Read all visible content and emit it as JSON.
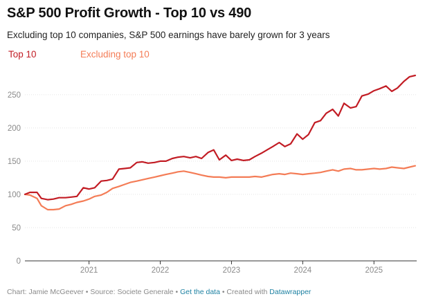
{
  "chart_data": {
    "type": "line",
    "title": "S&P 500 Profit Growth - Top 10 vs 490",
    "subtitle": "Excluding top 10 companies, S&P 500 earnings have barely grown for 3 years",
    "xlabel": "",
    "ylabel": "",
    "xlim": [
      2020.1,
      2025.6
    ],
    "ylim": [
      0,
      280
    ],
    "y_ticks": [
      0,
      50,
      100,
      150,
      200,
      250
    ],
    "x_ticks": [
      2021,
      2022,
      2023,
      2024,
      2025
    ],
    "x_tick_labels": [
      "2021",
      "2022",
      "2023",
      "2024",
      "2025"
    ],
    "grid": true,
    "legend_position": "top-left",
    "x": [
      2020.1,
      2020.17,
      2020.27,
      2020.33,
      2020.42,
      2020.5,
      2020.58,
      2020.67,
      2020.75,
      2020.83,
      2020.92,
      2021.0,
      2021.08,
      2021.17,
      2021.25,
      2021.33,
      2021.42,
      2021.5,
      2021.58,
      2021.67,
      2021.75,
      2021.83,
      2021.92,
      2022.0,
      2022.08,
      2022.17,
      2022.25,
      2022.33,
      2022.42,
      2022.5,
      2022.58,
      2022.67,
      2022.75,
      2022.83,
      2022.92,
      2023.0,
      2023.08,
      2023.17,
      2023.25,
      2023.33,
      2023.42,
      2023.5,
      2023.58,
      2023.67,
      2023.75,
      2023.83,
      2023.92,
      2024.0,
      2024.08,
      2024.17,
      2024.25,
      2024.33,
      2024.42,
      2024.5,
      2024.58,
      2024.67,
      2024.75,
      2024.83,
      2024.92,
      2025.0,
      2025.08,
      2025.17,
      2025.25,
      2025.33,
      2025.42,
      2025.5,
      2025.58
    ],
    "series": [
      {
        "name": "Top 10",
        "color": "#c21c24",
        "values": [
          100,
          103,
          103,
          94,
          92,
          93,
          95,
          95,
          96,
          97,
          110,
          108,
          110,
          120,
          121,
          123,
          138,
          139,
          140,
          148,
          149,
          147,
          148,
          150,
          150,
          154,
          156,
          157,
          155,
          157,
          154,
          163,
          167,
          152,
          159,
          151,
          153,
          151,
          152,
          157,
          162,
          167,
          172,
          178,
          172,
          176,
          191,
          183,
          190,
          208,
          211,
          222,
          228,
          218,
          237,
          230,
          232,
          248,
          251,
          256,
          259,
          263,
          255,
          260,
          270,
          277,
          279
        ]
      },
      {
        "name": "Excluding top 10",
        "color": "#f47c56",
        "values": [
          100,
          99,
          94,
          83,
          77,
          77,
          78,
          83,
          85,
          88,
          90,
          93,
          97,
          99,
          103,
          109,
          112,
          115,
          118,
          120,
          122,
          124,
          126,
          128,
          130,
          132,
          134,
          135,
          133,
          131,
          129,
          127,
          126,
          126,
          125,
          126,
          126,
          126,
          126,
          127,
          126,
          128,
          130,
          131,
          130,
          132,
          131,
          130,
          131,
          132,
          133,
          135,
          137,
          135,
          138,
          139,
          137,
          137,
          138,
          139,
          138,
          139,
          141,
          140,
          139,
          141,
          143
        ]
      }
    ]
  },
  "footer": {
    "source": "Chart: Jamie McGeever • Source: Societe Generale • ",
    "get_data": "Get the data",
    "created": " • Created with ",
    "tool": "Datawrapper"
  }
}
